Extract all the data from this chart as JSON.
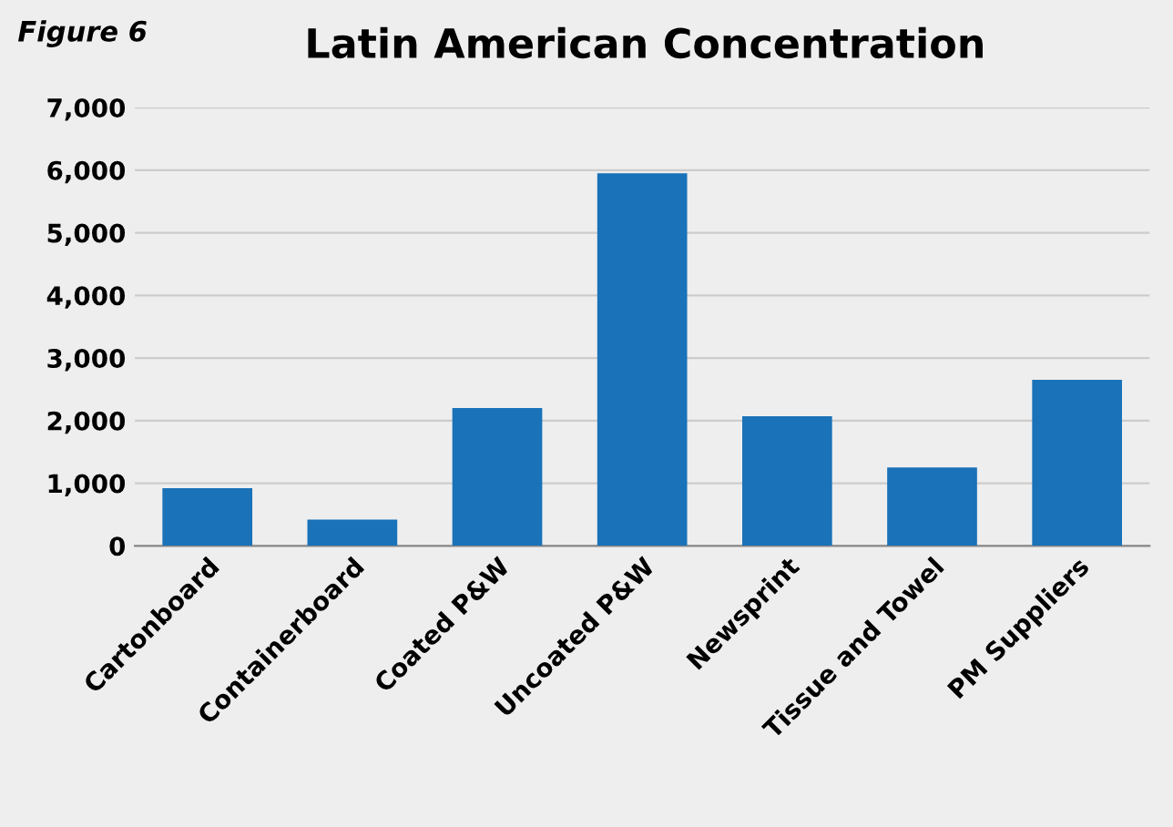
{
  "chart_data": {
    "type": "bar",
    "title": "Latin American Concentration",
    "annotations": [
      "Figure 6"
    ],
    "categories": [
      "Cartonboard",
      "Containerboard",
      "Coated P&W",
      "Uncoated P&W",
      "Newsprint",
      "Tissue and Towel",
      "PM Suppliers"
    ],
    "values": [
      920,
      420,
      2200,
      5950,
      2070,
      1250,
      2650
    ],
    "color": "#1a72b8",
    "ylim": [
      0,
      7000
    ],
    "yticks": [
      {
        "value": 0,
        "label": "0"
      },
      {
        "value": 1000,
        "label": "1,000"
      },
      {
        "value": 2000,
        "label": "2,000"
      },
      {
        "value": 3000,
        "label": "3,000"
      },
      {
        "value": 4000,
        "label": "4,000"
      },
      {
        "value": 5000,
        "label": "5,000"
      },
      {
        "value": 6000,
        "label": "6,000"
      },
      {
        "value": 7000,
        "label": "7,000"
      }
    ],
    "grid": "y"
  }
}
